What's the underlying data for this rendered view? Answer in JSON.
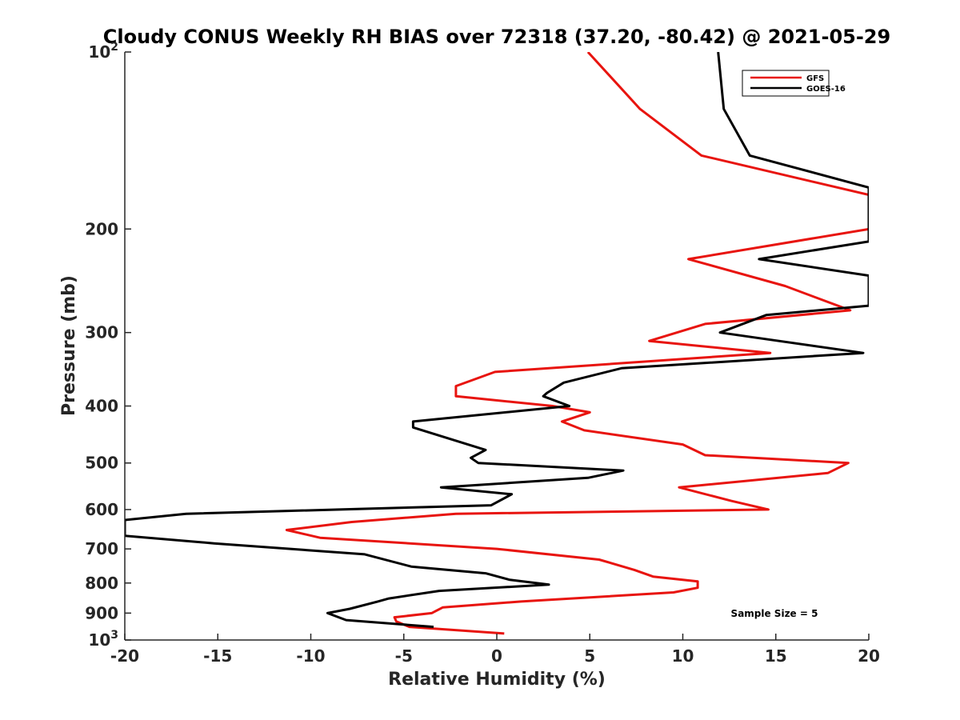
{
  "chart_data": {
    "type": "line",
    "title": "Cloudy CONUS Weekly RH BIAS over 72318 (37.20, -80.42) @ 2021-05-29",
    "xlabel": "Relative Humidity (%)",
    "ylabel": "Pressure (mb)",
    "xlim": [
      -20,
      20
    ],
    "ylim": [
      100,
      1000
    ],
    "yscale": "log",
    "y_reversed": true,
    "xticks": [
      -20,
      -15,
      -10,
      -5,
      0,
      5,
      10,
      15,
      20
    ],
    "xtick_labels": [
      "-20",
      "-15",
      "-10",
      "-5",
      "0",
      "5",
      "10",
      "15",
      "20"
    ],
    "yticks": [
      100,
      200,
      300,
      400,
      500,
      600,
      700,
      800,
      900,
      1000
    ],
    "ytick_labels": [
      {
        "value": 100,
        "base": "10",
        "exp": "2"
      },
      {
        "value": 200,
        "base": "200",
        "exp": ""
      },
      {
        "value": 300,
        "base": "300",
        "exp": ""
      },
      {
        "value": 400,
        "base": "400",
        "exp": ""
      },
      {
        "value": 500,
        "base": "500",
        "exp": ""
      },
      {
        "value": 600,
        "base": "600",
        "exp": ""
      },
      {
        "value": 700,
        "base": "700",
        "exp": ""
      },
      {
        "value": 800,
        "base": "800",
        "exp": ""
      },
      {
        "value": 900,
        "base": "900",
        "exp": ""
      },
      {
        "value": 1000,
        "base": "10",
        "exp": "3"
      }
    ],
    "legend_position": "top-right",
    "annotation": "Sample Size = 5",
    "series": [
      {
        "name": "GFS",
        "color": "#e8140f",
        "points": [
          [
            4.9,
            100
          ],
          [
            7.7,
            125
          ],
          [
            11,
            150
          ],
          [
            20,
            175
          ],
          [
            20,
            200
          ],
          [
            10.3,
            225
          ],
          [
            15.5,
            250
          ],
          [
            19,
            275
          ],
          [
            11.2,
            290
          ],
          [
            8.2,
            310
          ],
          [
            14.7,
            325
          ],
          [
            -0.1,
            350
          ],
          [
            -2.2,
            370
          ],
          [
            -2.2,
            385
          ],
          [
            3,
            400
          ],
          [
            5,
            410
          ],
          [
            3.5,
            425
          ],
          [
            4.7,
            440
          ],
          [
            10,
            465
          ],
          [
            11.2,
            485
          ],
          [
            18.9,
            500
          ],
          [
            17.8,
            520
          ],
          [
            9.8,
            550
          ],
          [
            12.6,
            580
          ],
          [
            14.6,
            600
          ],
          [
            -2.2,
            610
          ],
          [
            -7.8,
            630
          ],
          [
            -11.3,
            650
          ],
          [
            -9.5,
            670
          ],
          [
            0,
            700
          ],
          [
            5.5,
            730
          ],
          [
            7.4,
            760
          ],
          [
            8.4,
            780
          ],
          [
            10.8,
            795
          ],
          [
            10.8,
            815
          ],
          [
            9.5,
            830
          ],
          [
            1.3,
            860
          ],
          [
            -2.9,
            880
          ],
          [
            -3.5,
            900
          ],
          [
            -5.5,
            915
          ],
          [
            -5.4,
            930
          ],
          [
            -4.7,
            950
          ],
          [
            0.4,
            975
          ]
        ]
      },
      {
        "name": "GOES-16",
        "color": "#000000",
        "points": [
          [
            11.9,
            100
          ],
          [
            12.2,
            125
          ],
          [
            13.6,
            150
          ],
          [
            20,
            170
          ],
          [
            20,
            210
          ],
          [
            14.1,
            225
          ],
          [
            20,
            240
          ],
          [
            20,
            265
          ],
          [
            20,
            270
          ],
          [
            14.5,
            280
          ],
          [
            12,
            300
          ],
          [
            19.7,
            325
          ],
          [
            6.7,
            345
          ],
          [
            3.6,
            365
          ],
          [
            2.7,
            380
          ],
          [
            2.5,
            385
          ],
          [
            3.9,
            400
          ],
          [
            -4.5,
            425
          ],
          [
            -4.5,
            435
          ],
          [
            -0.6,
            475
          ],
          [
            -1.4,
            490
          ],
          [
            -1,
            500
          ],
          [
            6.8,
            515
          ],
          [
            4.9,
            530
          ],
          [
            -3,
            550
          ],
          [
            0.8,
            565
          ],
          [
            -0.3,
            590
          ],
          [
            -16.7,
            610
          ],
          [
            -20,
            625
          ],
          [
            -20,
            665
          ],
          [
            -15.2,
            685
          ],
          [
            -7.1,
            715
          ],
          [
            -4.6,
            750
          ],
          [
            -0.6,
            770
          ],
          [
            0.7,
            790
          ],
          [
            2.8,
            805
          ],
          [
            -3.1,
            825
          ],
          [
            -5.8,
            850
          ],
          [
            -6.4,
            860
          ],
          [
            -7.9,
            885
          ],
          [
            -9.1,
            900
          ],
          [
            -8.1,
            925
          ],
          [
            -3.4,
            950
          ]
        ]
      }
    ]
  }
}
